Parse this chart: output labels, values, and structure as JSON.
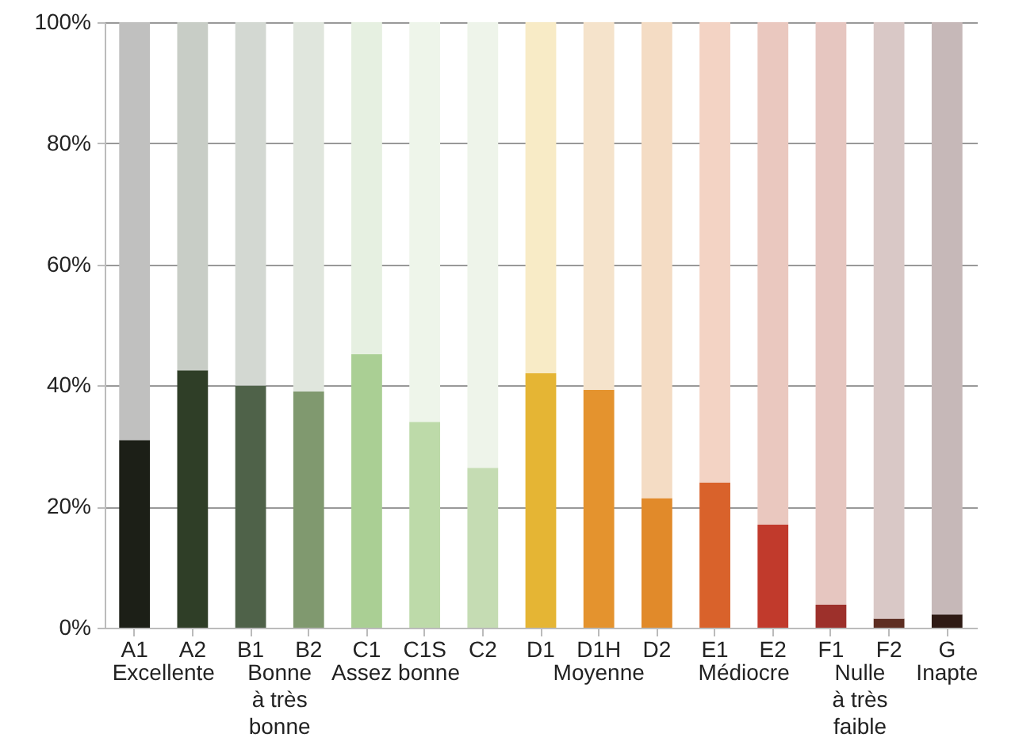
{
  "chart_data": {
    "type": "bar",
    "stacked": true,
    "grid": "y",
    "categories": [
      "A1",
      "A2",
      "B1",
      "B2",
      "C1",
      "C1S",
      "C2",
      "D1",
      "D1H",
      "D2",
      "E1",
      "E2",
      "F1",
      "F2",
      "G"
    ],
    "series": [
      {
        "colors": [
          "#1c1f17",
          "#2f3e27",
          "#4f6249",
          "#80996f",
          "#aacf94",
          "#bddaa9",
          "#c5dcb3",
          "#e5b534",
          "#e4932e",
          "#e18a2a",
          "#d9622b",
          "#c13a2c",
          "#9d302b",
          "#5e2e22",
          "#2e1a14"
        ],
        "values": [
          31,
          42.5,
          40,
          39,
          45.2,
          34,
          26.4,
          42,
          39.3,
          21.4,
          24,
          17,
          3.8,
          1.5,
          2.2
        ]
      },
      {
        "colors": [
          "#c0c0bf",
          "#c8cdc6",
          "#d3d8d2",
          "#e0e6dd",
          "#e6f0e1",
          "#eef5ea",
          "#eef4ea",
          "#f8ebc6",
          "#f5e3cb",
          "#f4dcc4",
          "#f3d3c4",
          "#eac8bf",
          "#e6c6c0",
          "#d9c8c6",
          "#c6b8b8"
        ],
        "values": [
          69,
          57.5,
          60,
          61,
          54.8,
          66,
          73.6,
          58,
          60.7,
          78.6,
          76,
          83,
          96.2,
          98.5,
          97.8
        ]
      }
    ],
    "ylim": [
      0,
      100
    ],
    "yticks": [
      {
        "value": 0,
        "label": "0%"
      },
      {
        "value": 20,
        "label": "20%"
      },
      {
        "value": 40,
        "label": "40%"
      },
      {
        "value": 60,
        "label": "60%"
      },
      {
        "value": 80,
        "label": "80%"
      },
      {
        "value": 100,
        "label": "100%"
      }
    ],
    "annotations": [
      "Excellente",
      "Bonne à très bonne",
      "Assez bonne",
      "Moyenne",
      "Médiocre",
      "Nulle à très faible",
      "Inapte"
    ]
  }
}
